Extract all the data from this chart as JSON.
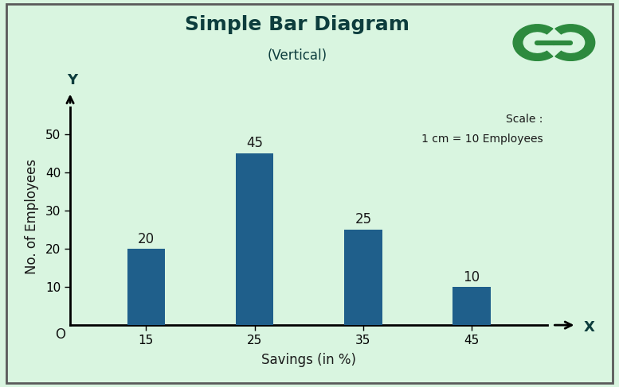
{
  "title": "Simple Bar Diagram",
  "subtitle": "(Vertical)",
  "xlabel": "Savings (in %)",
  "ylabel": "No. of Employees",
  "categories": [
    15,
    25,
    35,
    45
  ],
  "values": [
    20,
    45,
    25,
    10
  ],
  "bar_color": "#1F5F8B",
  "background_color": "#d9f5e0",
  "border_color": "#5a5a5a",
  "title_color": "#0d3d3d",
  "ylim": [
    0,
    57
  ],
  "yticks": [
    10,
    20,
    30,
    40,
    50
  ],
  "scale_text_line1": "Scale :",
  "scale_text_line2": "1 cm = 10 Employees",
  "origin_label": "O",
  "x_axis_label": "X",
  "y_axis_label": "Y",
  "title_fontsize": 18,
  "subtitle_fontsize": 12,
  "label_fontsize": 12,
  "tick_fontsize": 11,
  "bar_label_fontsize": 12,
  "bar_width": 0.35,
  "logo_color": "#2d8a3e",
  "scale_fontsize": 10
}
